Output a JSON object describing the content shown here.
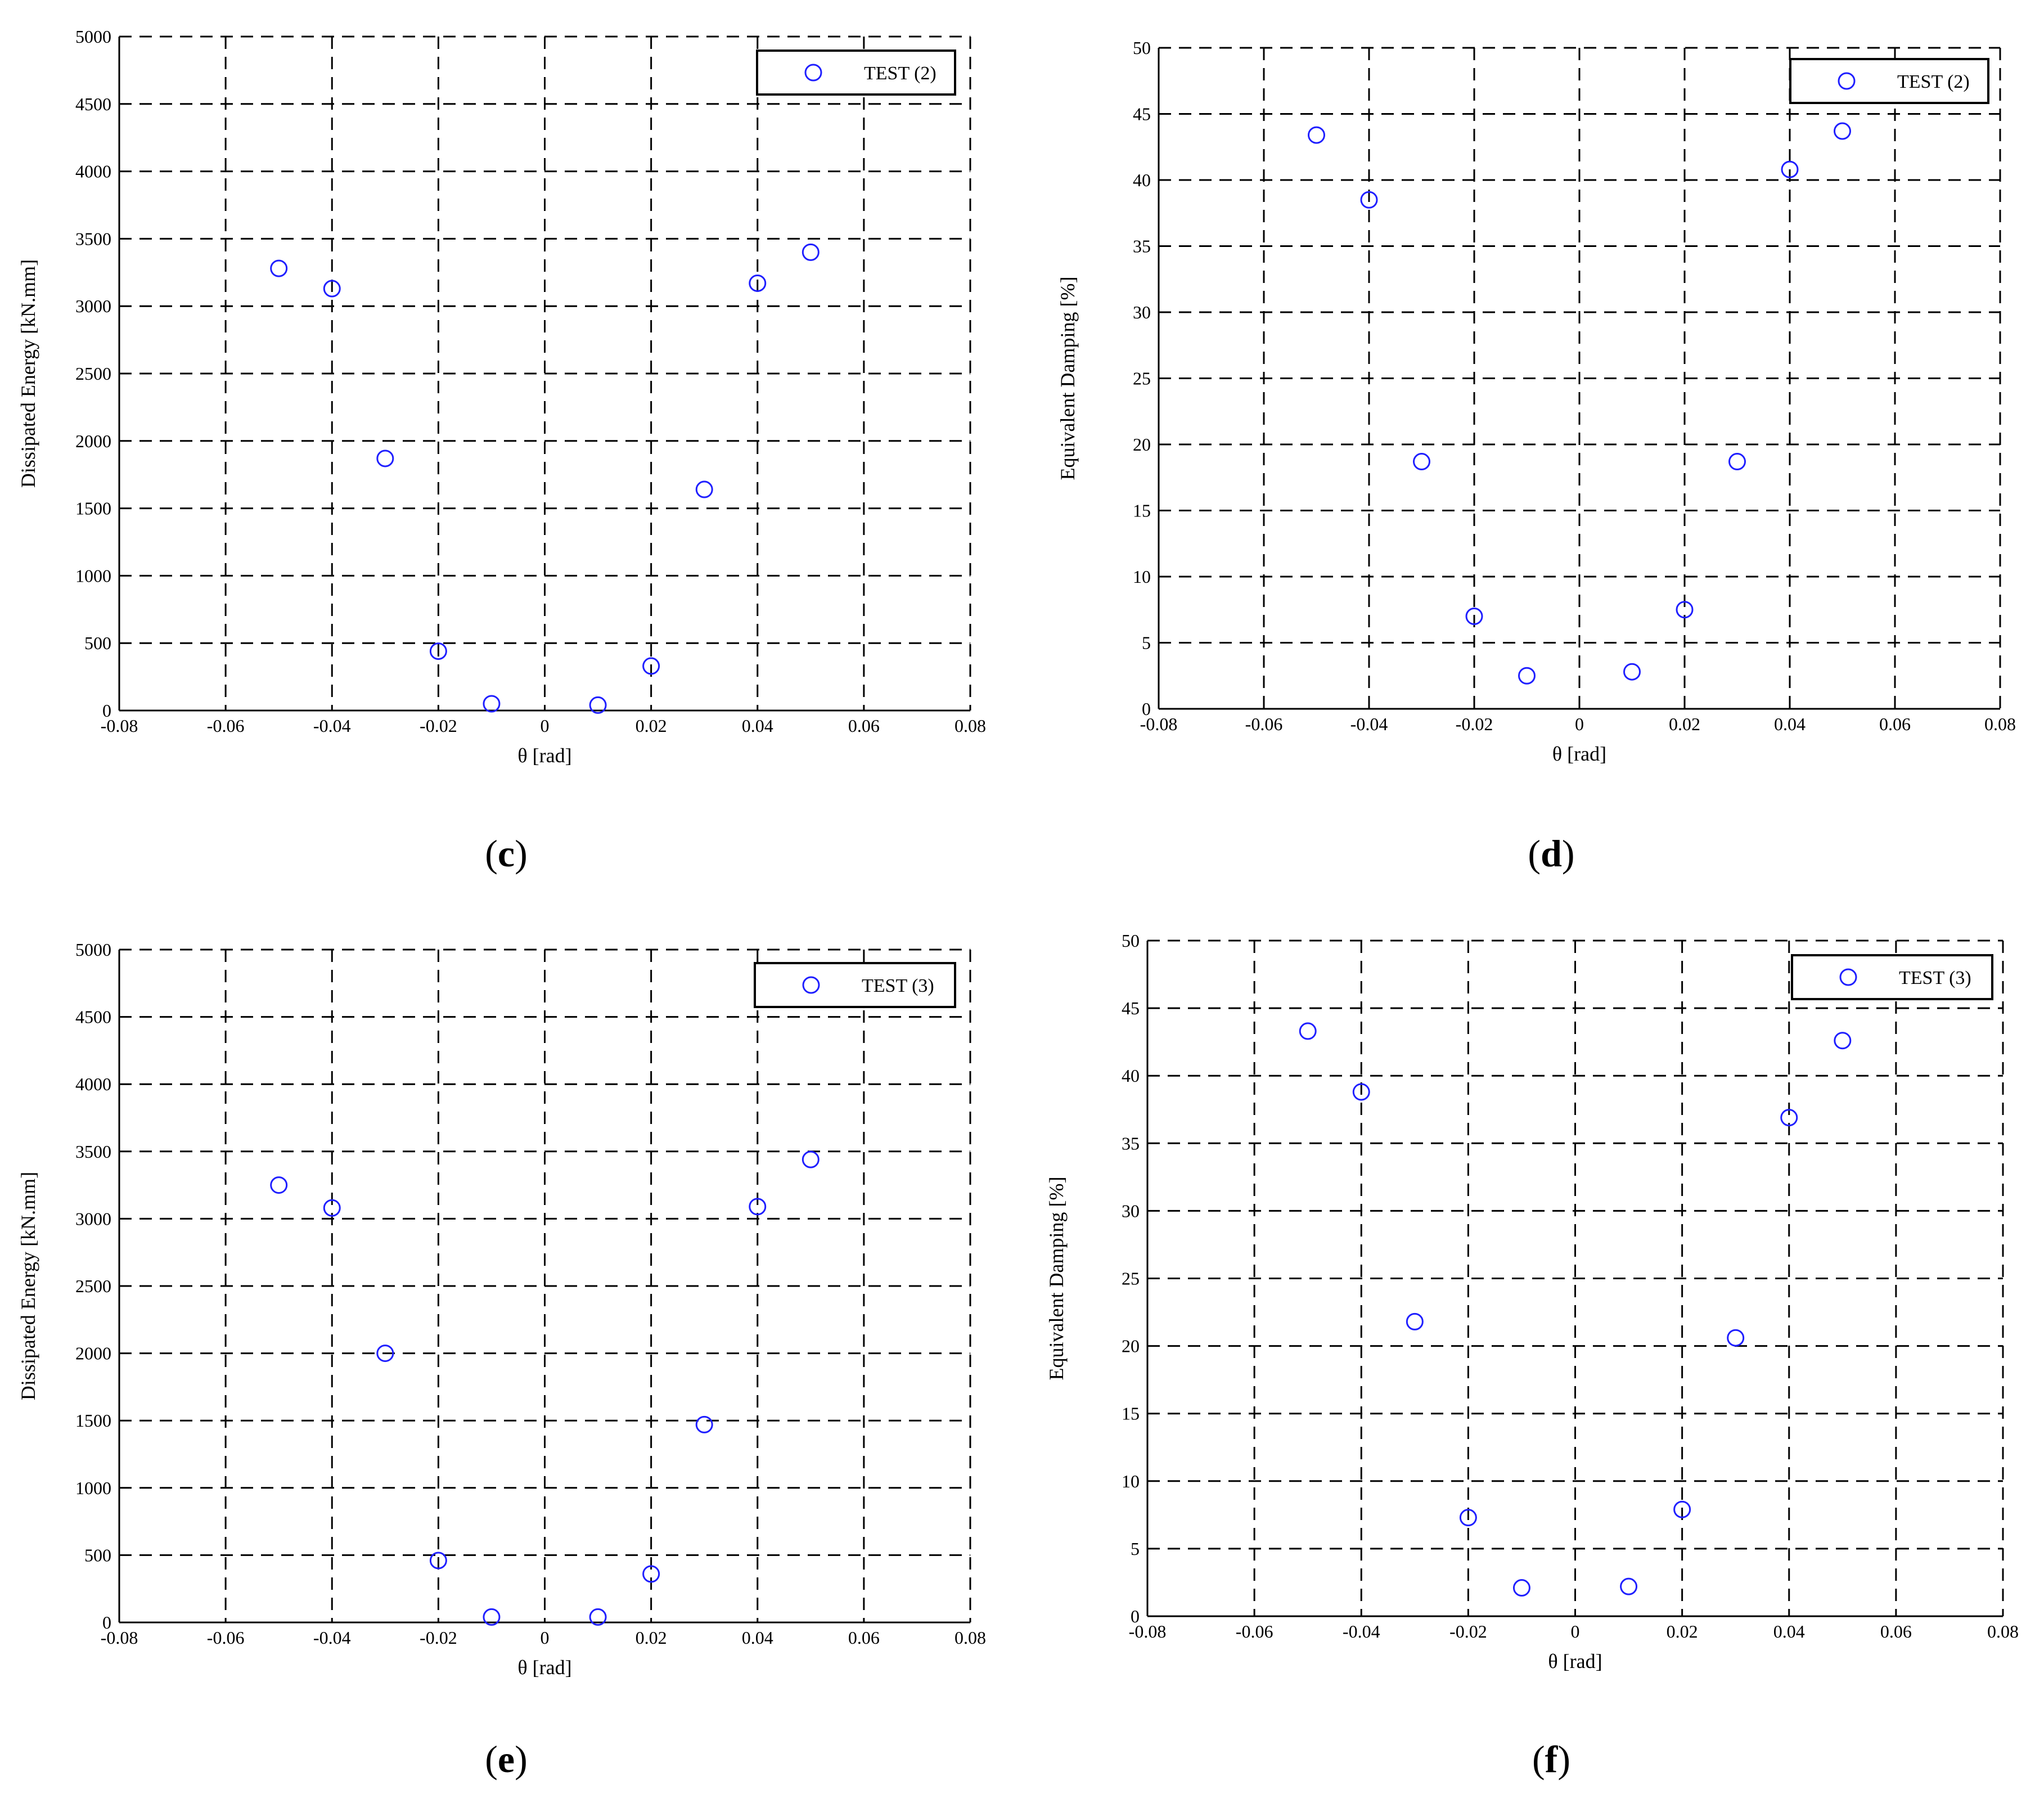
{
  "chart_data": [
    {
      "type": "scatter",
      "panel": "(c)",
      "panel_letter": "c",
      "xlabel": "θ [rad]",
      "ylabel": "Dissipated Energy [kN.mm]",
      "xlim": [
        -0.08,
        0.08
      ],
      "ylim": [
        0,
        5000
      ],
      "xticks": [
        -0.08,
        -0.06,
        -0.04,
        -0.02,
        0,
        0.02,
        0.04,
        0.06,
        0.08
      ],
      "xtick_labels": [
        "-0.08",
        "-0.06",
        "-0.04",
        "-0.02",
        "0",
        "0.02",
        "0.04",
        "0.06",
        "0.08"
      ],
      "yticks": [
        0,
        500,
        1000,
        1500,
        2000,
        2500,
        3000,
        3500,
        4000,
        4500,
        5000
      ],
      "ytick_labels": [
        "0",
        "500",
        "1000",
        "1500",
        "2000",
        "2500",
        "3000",
        "3500",
        "4000",
        "4500",
        "5000"
      ],
      "grid": true,
      "legend_position": "top-right",
      "series": [
        {
          "name": "TEST (2)",
          "marker": "circle",
          "color": "#1f1fff",
          "points": [
            {
              "x": -0.05,
              "y": 3280
            },
            {
              "x": -0.04,
              "y": 3130
            },
            {
              "x": -0.03,
              "y": 1870
            },
            {
              "x": -0.02,
              "y": 440
            },
            {
              "x": -0.01,
              "y": 50
            },
            {
              "x": 0.01,
              "y": 40
            },
            {
              "x": 0.02,
              "y": 330
            },
            {
              "x": 0.03,
              "y": 1640
            },
            {
              "x": 0.04,
              "y": 3170
            },
            {
              "x": 0.05,
              "y": 3400
            }
          ]
        }
      ]
    },
    {
      "type": "scatter",
      "panel": "(d)",
      "panel_letter": "d",
      "xlabel": "θ [rad]",
      "ylabel": "Equivalent Damping [%]",
      "xlim": [
        -0.08,
        0.08
      ],
      "ylim": [
        0,
        50
      ],
      "xticks": [
        -0.08,
        -0.06,
        -0.04,
        -0.02,
        0,
        0.02,
        0.04,
        0.06,
        0.08
      ],
      "xtick_labels": [
        "-0.08",
        "-0.06",
        "-0.04",
        "-0.02",
        "0",
        "0.02",
        "0.04",
        "0.06",
        "0.08"
      ],
      "yticks": [
        0,
        5,
        10,
        15,
        20,
        25,
        30,
        35,
        40,
        45,
        50
      ],
      "ytick_labels": [
        "0",
        "5",
        "10",
        "15",
        "20",
        "25",
        "30",
        "35",
        "40",
        "45",
        "50"
      ],
      "grid": true,
      "legend_position": "top-right",
      "series": [
        {
          "name": "TEST (2)",
          "marker": "circle",
          "color": "#1f1fff",
          "points": [
            {
              "x": -0.05,
              "y": 43.4
            },
            {
              "x": -0.04,
              "y": 38.5
            },
            {
              "x": -0.03,
              "y": 18.7
            },
            {
              "x": -0.02,
              "y": 7.0
            },
            {
              "x": -0.01,
              "y": 2.5
            },
            {
              "x": 0.01,
              "y": 2.8
            },
            {
              "x": 0.02,
              "y": 7.5
            },
            {
              "x": 0.03,
              "y": 18.7
            },
            {
              "x": 0.04,
              "y": 40.8
            },
            {
              "x": 0.05,
              "y": 43.7
            }
          ]
        }
      ]
    },
    {
      "type": "scatter",
      "panel": "(e)",
      "panel_letter": "e",
      "xlabel": "θ [rad]",
      "ylabel": "Dissipated Energy [kN.mm]",
      "xlim": [
        -0.08,
        0.08
      ],
      "ylim": [
        0,
        5000
      ],
      "xticks": [
        -0.08,
        -0.06,
        -0.04,
        -0.02,
        0,
        0.02,
        0.04,
        0.06,
        0.08
      ],
      "xtick_labels": [
        "-0.08",
        "-0.06",
        "-0.04",
        "-0.02",
        "0",
        "0.02",
        "0.04",
        "0.06",
        "0.08"
      ],
      "yticks": [
        0,
        500,
        1000,
        1500,
        2000,
        2500,
        3000,
        3500,
        4000,
        4500,
        5000
      ],
      "ytick_labels": [
        "0",
        "500",
        "1000",
        "1500",
        "2000",
        "2500",
        "3000",
        "3500",
        "4000",
        "4500",
        "5000"
      ],
      "grid": true,
      "legend_position": "top-right",
      "series": [
        {
          "name": "TEST (3)",
          "marker": "circle",
          "color": "#1f1fff",
          "points": [
            {
              "x": -0.05,
              "y": 3250
            },
            {
              "x": -0.04,
              "y": 3080
            },
            {
              "x": -0.03,
              "y": 2000
            },
            {
              "x": -0.02,
              "y": 460
            },
            {
              "x": -0.01,
              "y": 40
            },
            {
              "x": 0.01,
              "y": 40
            },
            {
              "x": 0.02,
              "y": 360
            },
            {
              "x": 0.03,
              "y": 1470
            },
            {
              "x": 0.04,
              "y": 3090
            },
            {
              "x": 0.05,
              "y": 3440
            }
          ]
        }
      ]
    },
    {
      "type": "scatter",
      "panel": "(f)",
      "panel_letter": "f",
      "xlabel": "θ [rad]",
      "ylabel": "Equivalent Damping [%]",
      "xlim": [
        -0.08,
        0.08
      ],
      "ylim": [
        0,
        50
      ],
      "xticks": [
        -0.08,
        -0.06,
        -0.04,
        -0.02,
        0,
        0.02,
        0.04,
        0.06,
        0.08
      ],
      "xtick_labels": [
        "-0.08",
        "-0.06",
        "-0.04",
        "-0.02",
        "0",
        "0.02",
        "0.04",
        "0.06",
        "0.08"
      ],
      "yticks": [
        0,
        5,
        10,
        15,
        20,
        25,
        30,
        35,
        40,
        45,
        50
      ],
      "ytick_labels": [
        "0",
        "5",
        "10",
        "15",
        "20",
        "25",
        "30",
        "35",
        "40",
        "45",
        "50"
      ],
      "grid": true,
      "legend_position": "top-right",
      "series": [
        {
          "name": "TEST (3)",
          "marker": "circle",
          "color": "#1f1fff",
          "points": [
            {
              "x": -0.05,
              "y": 43.3
            },
            {
              "x": -0.04,
              "y": 38.8
            },
            {
              "x": -0.03,
              "y": 21.8
            },
            {
              "x": -0.02,
              "y": 7.3
            },
            {
              "x": -0.01,
              "y": 2.1
            },
            {
              "x": 0.01,
              "y": 2.2
            },
            {
              "x": 0.02,
              "y": 7.9
            },
            {
              "x": 0.03,
              "y": 20.6
            },
            {
              "x": 0.04,
              "y": 36.9
            },
            {
              "x": 0.05,
              "y": 42.6
            }
          ]
        }
      ]
    }
  ]
}
